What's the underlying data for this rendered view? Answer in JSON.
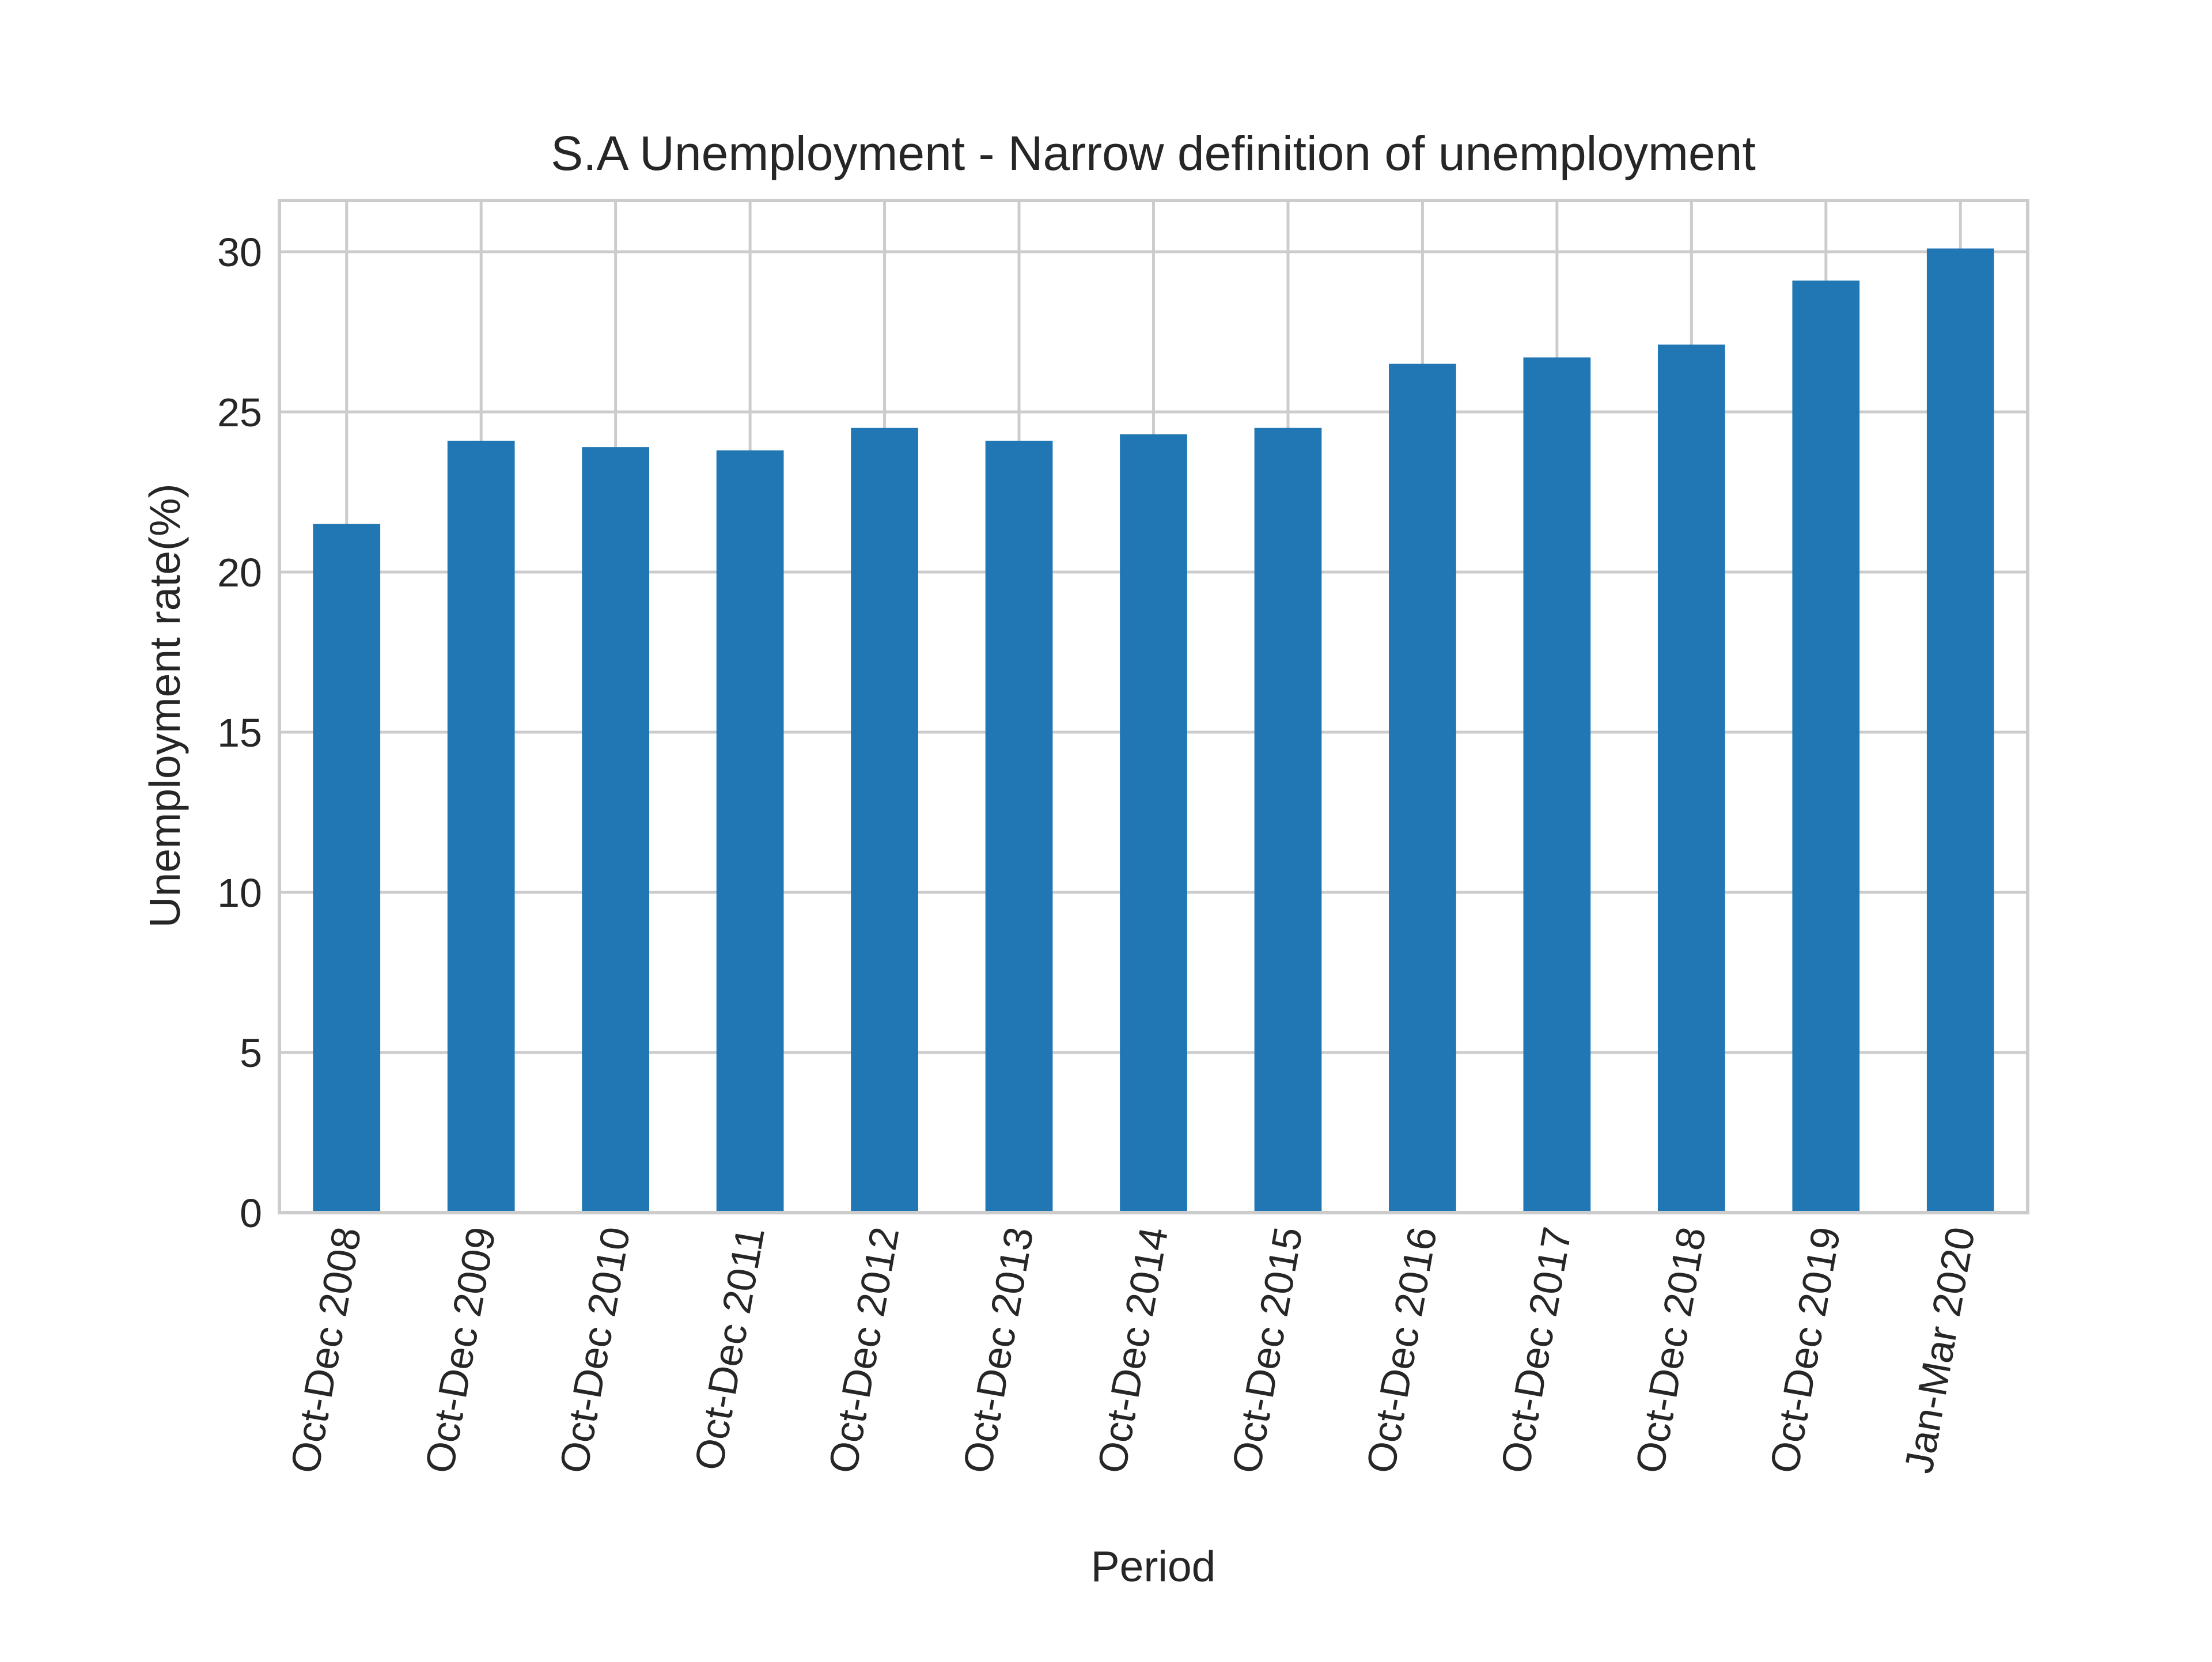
{
  "chart_data": {
    "type": "bar",
    "title": "S.A Unemployment - Narrow definition of unemployment",
    "xlabel": "Period",
    "ylabel": "Unemployment rate(%)",
    "categories": [
      "Oct-Dec 2008",
      "Oct-Dec 2009",
      "Oct-Dec 2010",
      "Oct-Dec 2011",
      "Oct-Dec 2012",
      "Oct-Dec 2013",
      "Oct-Dec 2014",
      "Oct-Dec 2015",
      "Oct-Dec 2016",
      "Oct-Dec 2017",
      "Oct-Dec 2018",
      "Oct-Dec 2019",
      "Jan-Mar 2020"
    ],
    "values": [
      21.5,
      24.1,
      23.9,
      23.8,
      24.5,
      24.1,
      24.3,
      24.5,
      26.5,
      26.7,
      27.1,
      29.1,
      30.1
    ],
    "ylim": [
      0,
      31.6
    ],
    "yticks": [
      0,
      5,
      10,
      15,
      20,
      25,
      30
    ],
    "grid": true,
    "legend": "none",
    "colors": {
      "bar": "#2077b4",
      "grid": "#cccccc",
      "frame": "#cccccc",
      "text": "#262626"
    }
  }
}
